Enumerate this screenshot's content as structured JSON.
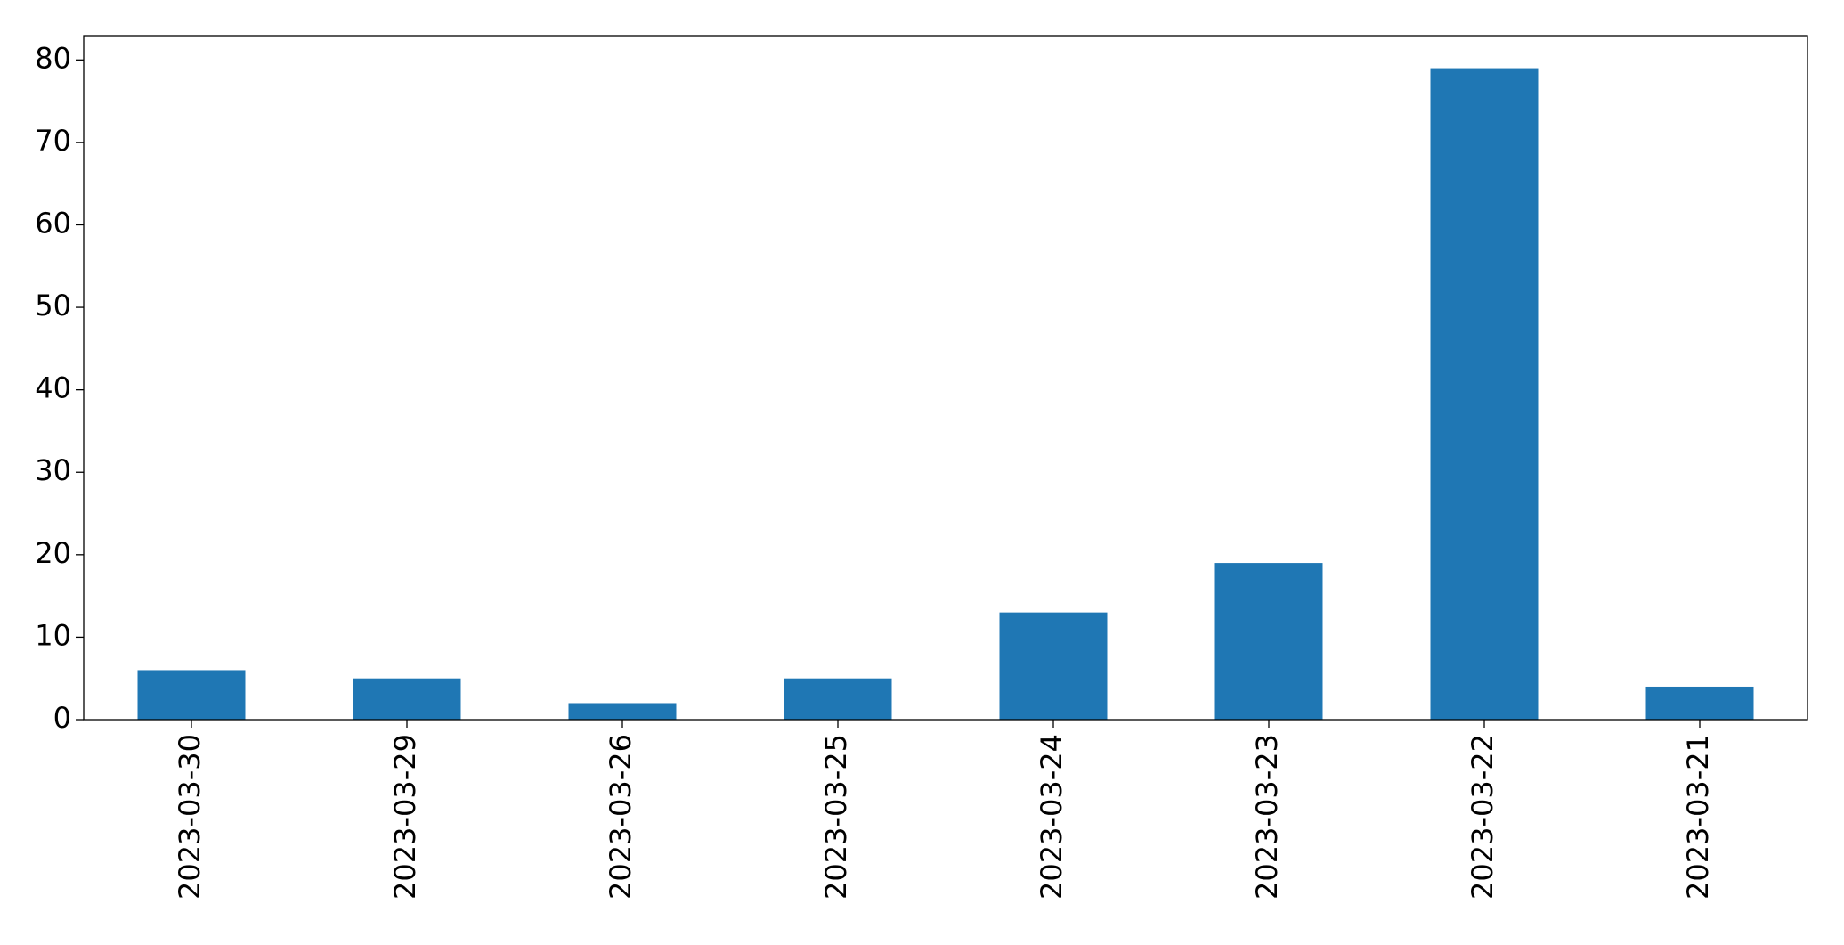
{
  "chart_data": {
    "type": "bar",
    "categories": [
      "2023-03-30",
      "2023-03-29",
      "2023-03-26",
      "2023-03-25",
      "2023-03-24",
      "2023-03-23",
      "2023-03-22",
      "2023-03-21"
    ],
    "values": [
      6,
      5,
      2,
      5,
      13,
      19,
      79,
      4
    ],
    "color": "#1f77b4",
    "ylim": [
      0,
      82.95
    ],
    "yticks": [
      0,
      10,
      20,
      30,
      40,
      50,
      60,
      70,
      80
    ],
    "grid": false
  }
}
